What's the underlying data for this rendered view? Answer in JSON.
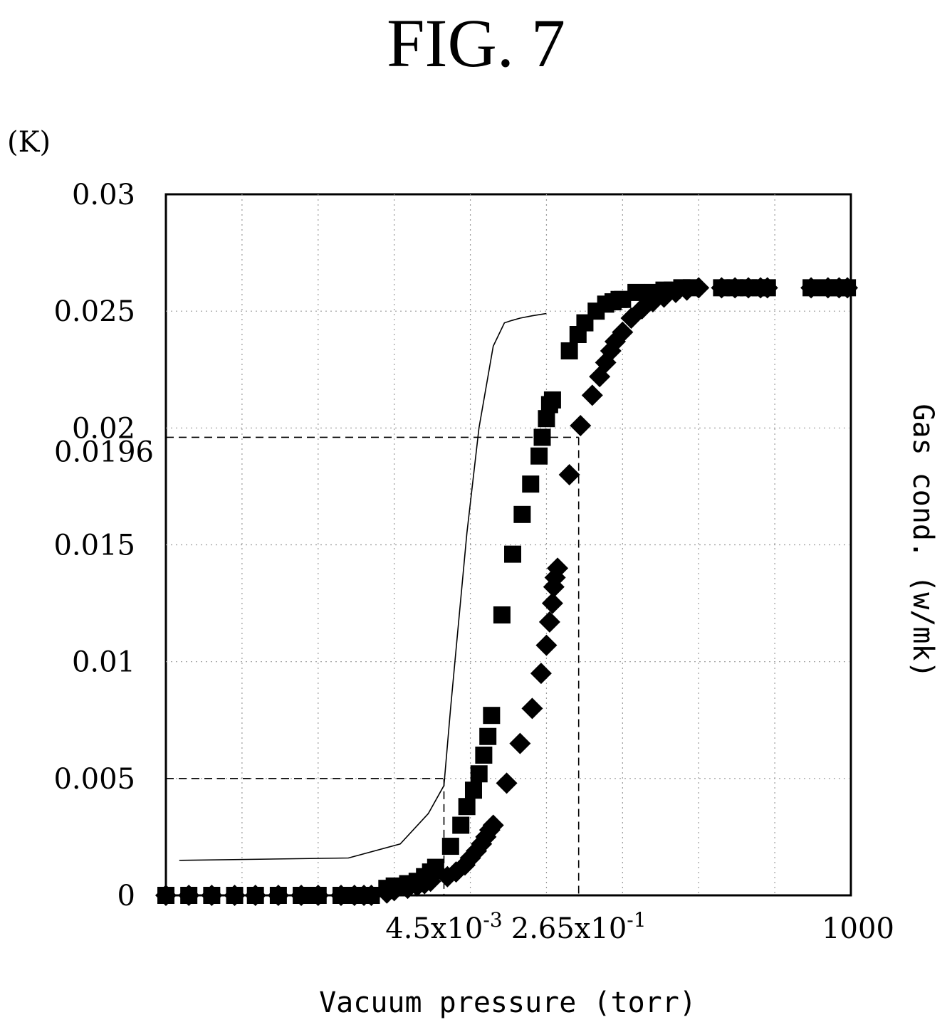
{
  "figure_title": "FIG. 7",
  "chart_data": {
    "type": "scatter",
    "title": "FIG. 7",
    "ylabel_unit": "(K)",
    "right_ylabel": "Gas cond. (w/mk)",
    "xlabel": "Vacuum pressure (torr)",
    "y_scale": "linear",
    "ylim": [
      0,
      0.03
    ],
    "x_scale": "log",
    "xlim": [
      1e-06,
      1000
    ],
    "yticks": [
      0,
      0.005,
      0.01,
      0.015,
      0.02,
      0.025,
      0.03
    ],
    "ytick_labels": [
      "0",
      "0.005",
      "0.01",
      "0.015",
      "0.02",
      "0.025",
      "0.03"
    ],
    "extra_ytick": {
      "value": 0.0196,
      "label": "0.0196"
    },
    "xtick_labels": [
      {
        "value": 0.0045,
        "base": "4.5x10",
        "exp": "-3"
      },
      {
        "value": 0.265,
        "base": "2.65x10",
        "exp": "-1"
      },
      {
        "value": 1000,
        "base": "1000",
        "exp": ""
      }
    ],
    "grid": {
      "vertical": true,
      "horizontal": true,
      "style": "dotted"
    },
    "reference_lines": [
      {
        "x": 0.0045,
        "y": 0.005
      },
      {
        "x": 0.265,
        "y": 0.0196
      }
    ],
    "series": [
      {
        "marker": "line",
        "x": [
          1.5e-06,
          0.00025,
          0.0012,
          0.0028,
          0.0045,
          0.0055,
          0.009,
          0.013,
          0.02,
          0.028,
          0.035,
          0.045,
          0.065,
          0.1
        ],
        "y": [
          0.0015,
          0.0016,
          0.0022,
          0.0035,
          0.0047,
          0.008,
          0.0155,
          0.02,
          0.0235,
          0.0245,
          0.0246,
          0.0247,
          0.0248,
          0.0249
        ]
      },
      {
        "marker": "square",
        "x": [
          1e-06,
          2e-06,
          4e-06,
          8e-06,
          1.5e-05,
          3e-05,
          6e-05,
          0.0001,
          0.0002,
          0.0003,
          0.0004,
          0.0005,
          0.0008,
          0.001,
          0.0015,
          0.002,
          0.0025,
          0.003,
          0.0035,
          0.0055,
          0.0075,
          0.009,
          0.011,
          0.013,
          0.015,
          0.017,
          0.019,
          0.026,
          0.036,
          0.048,
          0.062,
          0.08,
          0.088,
          0.1,
          0.11,
          0.12,
          0.2,
          0.26,
          0.32,
          0.45,
          0.6,
          0.75,
          0.9,
          1.0,
          1.5,
          2.5,
          3.5,
          4.5,
          6.0,
          8.0,
          20,
          30,
          45,
          65,
          80,
          300,
          500,
          700,
          900
        ],
        "y": [
          0,
          0,
          0,
          0,
          0,
          0,
          0,
          0,
          0,
          0,
          0,
          0,
          0.0003,
          0.0004,
          0.0005,
          0.0006,
          0.0008,
          0.001,
          0.0012,
          0.0021,
          0.003,
          0.0038,
          0.0045,
          0.0052,
          0.006,
          0.0068,
          0.0077,
          0.012,
          0.0146,
          0.0163,
          0.0176,
          0.0188,
          0.0196,
          0.0204,
          0.021,
          0.0212,
          0.0233,
          0.024,
          0.0245,
          0.025,
          0.0253,
          0.0254,
          0.0255,
          0.0255,
          0.0258,
          0.0258,
          0.0259,
          0.0259,
          0.026,
          0.026,
          0.026,
          0.026,
          0.026,
          0.026,
          0.026,
          0.026,
          0.026,
          0.026,
          0.026
        ]
      },
      {
        "marker": "diamond",
        "x": [
          1e-06,
          2e-06,
          4e-06,
          8e-06,
          1.5e-05,
          3e-05,
          6e-05,
          0.0001,
          0.0002,
          0.0003,
          0.0004,
          0.0005,
          0.0008,
          0.001,
          0.0015,
          0.002,
          0.0025,
          0.003,
          0.005,
          0.0065,
          0.0085,
          0.01,
          0.012,
          0.014,
          0.016,
          0.018,
          0.02,
          0.03,
          0.045,
          0.065,
          0.085,
          0.1,
          0.11,
          0.12,
          0.125,
          0.13,
          0.14,
          0.2,
          0.28,
          0.4,
          0.5,
          0.6,
          0.7,
          0.8,
          1.0,
          1.3,
          1.8,
          2.5,
          3.5,
          5.0,
          7.0,
          10,
          20,
          30,
          45,
          65,
          80,
          300,
          500,
          700,
          900
        ],
        "y": [
          0,
          0,
          0,
          0,
          0,
          0,
          0,
          0,
          0,
          0,
          0,
          0,
          0.0001,
          0.0002,
          0.0003,
          0.0004,
          0.0005,
          0.0006,
          0.0008,
          0.001,
          0.0013,
          0.0016,
          0.0019,
          0.0022,
          0.0025,
          0.0028,
          0.003,
          0.0048,
          0.0065,
          0.008,
          0.0095,
          0.0107,
          0.0117,
          0.0125,
          0.0132,
          0.0136,
          0.014,
          0.018,
          0.0201,
          0.0214,
          0.0222,
          0.0228,
          0.0233,
          0.0237,
          0.0241,
          0.0247,
          0.0251,
          0.0254,
          0.0256,
          0.0258,
          0.0259,
          0.026,
          0.026,
          0.026,
          0.026,
          0.026,
          0.026,
          0.026,
          0.026,
          0.026,
          0.026
        ]
      }
    ]
  }
}
